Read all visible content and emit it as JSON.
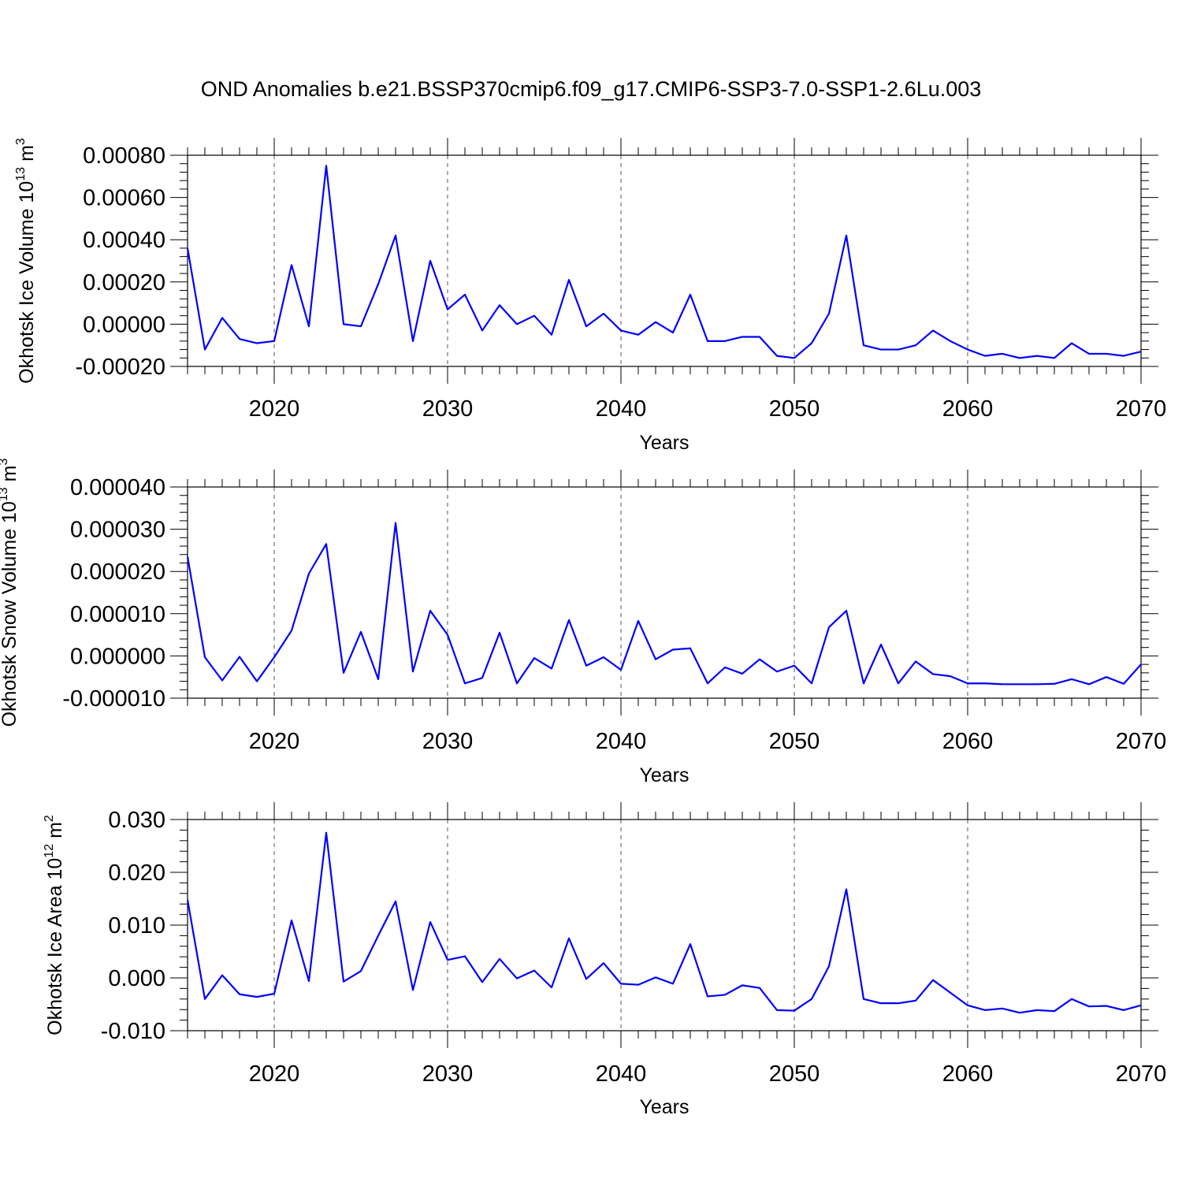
{
  "title": "OND Anomalies b.e21.BSSP370cmip6.f09_g17.CMIP6-SSP3-7.0-SSP1-2.6Lu.003",
  "colors": {
    "line": "#0000ff",
    "axes": "#000000",
    "grid": "#555555"
  },
  "chart_data": [
    {
      "type": "line",
      "ylabel": "Okhotsk Ice Volume",
      "yunit_base": "10",
      "yunit_exp": "13",
      "yunit_tail": "m",
      "yunit_tail_exp": "3",
      "xlabel": "Years",
      "xlim": [
        2015,
        2070
      ],
      "ylim": [
        -0.0002,
        0.0008
      ],
      "yticks": [
        "0.00080",
        "0.00060",
        "0.00040",
        "0.00020",
        "0.00000",
        "-0.00020"
      ],
      "ytick_values": [
        0.0008,
        0.0006,
        0.0004,
        0.0002,
        0.0,
        -0.0002
      ],
      "xticks": [
        "2020",
        "2030",
        "2040",
        "2050",
        "2060",
        "2070"
      ],
      "xtick_values": [
        2020,
        2030,
        2040,
        2050,
        2060,
        2070
      ],
      "grid": "dashed vertical at major x ticks",
      "x": [
        2015,
        2016,
        2017,
        2018,
        2019,
        2020,
        2021,
        2022,
        2023,
        2024,
        2025,
        2026,
        2027,
        2028,
        2029,
        2030,
        2031,
        2032,
        2033,
        2034,
        2035,
        2036,
        2037,
        2038,
        2039,
        2040,
        2041,
        2042,
        2043,
        2044,
        2045,
        2046,
        2047,
        2048,
        2049,
        2050,
        2051,
        2052,
        2053,
        2054,
        2055,
        2056,
        2057,
        2058,
        2059,
        2060,
        2061,
        2062,
        2063,
        2064,
        2065,
        2066,
        2067,
        2068,
        2069,
        2070
      ],
      "series": [
        {
          "values": [
            0.00036,
            -0.00012,
            3e-05,
            -7e-05,
            -9e-05,
            -8e-05,
            0.00028,
            -1e-05,
            0.00075,
            0.0,
            -1e-05,
            0.00019,
            0.00042,
            -8e-05,
            0.0003,
            7e-05,
            0.00014,
            -3e-05,
            9e-05,
            0.0,
            4e-05,
            -5e-05,
            0.00021,
            -1e-05,
            5e-05,
            -3e-05,
            -5e-05,
            1e-05,
            -4e-05,
            0.00014,
            -8e-05,
            -8e-05,
            -6e-05,
            -6e-05,
            -0.00015,
            -0.00016,
            -9e-05,
            5e-05,
            0.00042,
            -0.0001,
            -0.00012,
            -0.00012,
            -0.0001,
            -3e-05,
            -8e-05,
            -0.00012,
            -0.00015,
            -0.00014,
            -0.00016,
            -0.00015,
            -0.00016,
            -9e-05,
            -0.00014,
            -0.00014,
            -0.00015,
            -0.00013
          ]
        }
      ]
    },
    {
      "type": "line",
      "ylabel": "Okhotsk Snow Volume",
      "yunit_base": "10",
      "yunit_exp": "13",
      "yunit_tail": "m",
      "yunit_tail_exp": "3",
      "xlabel": "Years",
      "xlim": [
        2015,
        2070
      ],
      "ylim": [
        -1e-05,
        4e-05
      ],
      "yticks": [
        "0.000040",
        "0.000030",
        "0.000020",
        "0.000010",
        "0.000000",
        "-0.000010"
      ],
      "ytick_values": [
        4e-05,
        3e-05,
        2e-05,
        1e-05,
        0.0,
        -1e-05
      ],
      "xticks": [
        "2020",
        "2030",
        "2040",
        "2050",
        "2060",
        "2070"
      ],
      "xtick_values": [
        2020,
        2030,
        2040,
        2050,
        2060,
        2070
      ],
      "grid": "dashed vertical at major x ticks",
      "x": [
        2015,
        2016,
        2017,
        2018,
        2019,
        2020,
        2021,
        2022,
        2023,
        2024,
        2025,
        2026,
        2027,
        2028,
        2029,
        2030,
        2031,
        2032,
        2033,
        2034,
        2035,
        2036,
        2037,
        2038,
        2039,
        2040,
        2041,
        2042,
        2043,
        2044,
        2045,
        2046,
        2047,
        2048,
        2049,
        2050,
        2051,
        2052,
        2053,
        2054,
        2055,
        2056,
        2057,
        2058,
        2059,
        2060,
        2061,
        2062,
        2063,
        2064,
        2065,
        2066,
        2067,
        2068,
        2069,
        2070
      ],
      "series": [
        {
          "values": [
            2.35e-05,
            -3e-07,
            -5.8e-06,
            -2e-07,
            -6e-06,
            -3e-07,
            6e-06,
            1.95e-05,
            2.65e-05,
            -4e-06,
            5.7e-06,
            -5.5e-06,
            3.15e-05,
            -3.7e-06,
            1.07e-05,
            5e-06,
            -6.5e-06,
            -5.2e-06,
            5.5e-06,
            -6.5e-06,
            -5e-07,
            -3e-06,
            8.5e-06,
            -2.3e-06,
            -3e-07,
            -3.3e-06,
            8.3e-06,
            -8e-07,
            1.5e-06,
            1.8e-06,
            -6.5e-06,
            -2.7e-06,
            -4.2e-06,
            -8e-07,
            -3.7e-06,
            -2.3e-06,
            -6.5e-06,
            6.8e-06,
            1.07e-05,
            -6.5e-06,
            2.7e-06,
            -6.5e-06,
            -1.3e-06,
            -4.3e-06,
            -4.8e-06,
            -6.5e-06,
            -6.5e-06,
            -6.7e-06,
            -6.7e-06,
            -6.7e-06,
            -6.6e-06,
            -5.5e-06,
            -6.7e-06,
            -5e-06,
            -6.6e-06,
            -2e-06
          ]
        }
      ]
    },
    {
      "type": "line",
      "ylabel": "Okhotsk Ice Area",
      "yunit_base": "10",
      "yunit_exp": "12",
      "yunit_tail": "m",
      "yunit_tail_exp": "2",
      "xlabel": "Years",
      "xlim": [
        2015,
        2070
      ],
      "ylim": [
        -0.01,
        0.03
      ],
      "yticks": [
        "0.030",
        "0.020",
        "0.010",
        "0.000",
        "-0.010"
      ],
      "ytick_values": [
        0.03,
        0.02,
        0.01,
        0.0,
        -0.01
      ],
      "xticks": [
        "2020",
        "2030",
        "2040",
        "2050",
        "2060",
        "2070"
      ],
      "xtick_values": [
        2020,
        2030,
        2040,
        2050,
        2060,
        2070
      ],
      "grid": "dashed vertical at major x ticks",
      "x": [
        2015,
        2016,
        2017,
        2018,
        2019,
        2020,
        2021,
        2022,
        2023,
        2024,
        2025,
        2026,
        2027,
        2028,
        2029,
        2030,
        2031,
        2032,
        2033,
        2034,
        2035,
        2036,
        2037,
        2038,
        2039,
        2040,
        2041,
        2042,
        2043,
        2044,
        2045,
        2046,
        2047,
        2048,
        2049,
        2050,
        2051,
        2052,
        2053,
        2054,
        2055,
        2056,
        2057,
        2058,
        2059,
        2060,
        2061,
        2062,
        2063,
        2064,
        2065,
        2066,
        2067,
        2068,
        2069,
        2070
      ],
      "series": [
        {
          "values": [
            0.0148,
            -0.004,
            0.0005,
            -0.0031,
            -0.0036,
            -0.003,
            0.0109,
            -0.0006,
            0.0275,
            -0.0007,
            0.0013,
            0.008,
            0.0145,
            -0.0023,
            0.0106,
            0.0034,
            0.0041,
            -0.0008,
            0.0036,
            -0.0001,
            0.0014,
            -0.0018,
            0.0075,
            -0.0002,
            0.0028,
            -0.0011,
            -0.0013,
            0.0001,
            -0.0011,
            0.0064,
            -0.0035,
            -0.0032,
            -0.0014,
            -0.0019,
            -0.0061,
            -0.0062,
            -0.004,
            0.0022,
            0.0168,
            -0.004,
            -0.0048,
            -0.0048,
            -0.0043,
            -0.0004,
            -0.0028,
            -0.0052,
            -0.0061,
            -0.0058,
            -0.0066,
            -0.0061,
            -0.0063,
            -0.004,
            -0.0054,
            -0.0053,
            -0.0061,
            -0.0052
          ]
        }
      ]
    }
  ]
}
